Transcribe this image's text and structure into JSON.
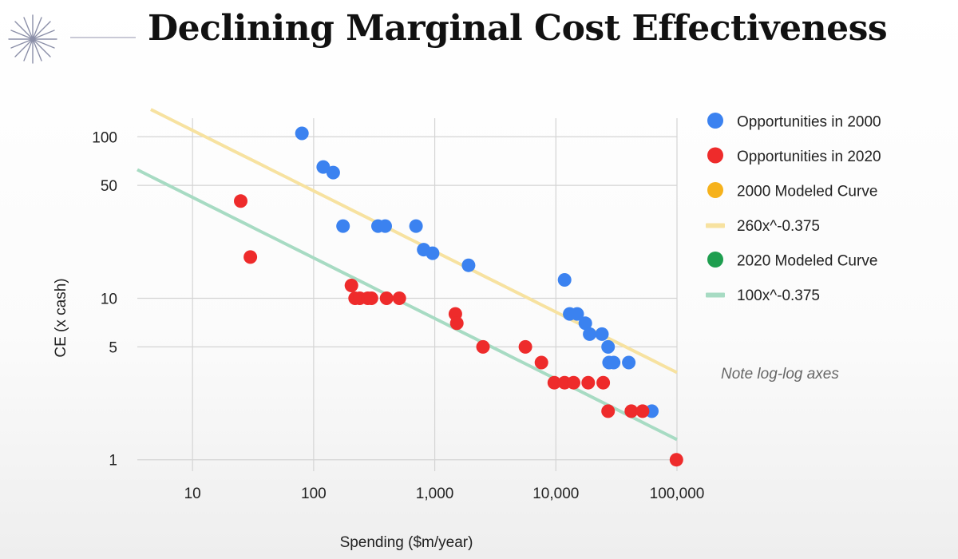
{
  "title": "Declining Marginal Cost Effectiveness",
  "note": "Note log-log axes",
  "colors": {
    "blue": "#3b82f0",
    "red": "#ee2b2b",
    "orange": "#f6b21c",
    "green": "#1e9e4f",
    "yellow_line": "#f7e2a0",
    "green_line": "#a7dbc3",
    "grid": "#d4d4d4"
  },
  "chart_data": {
    "type": "scatter",
    "title": "Declining Marginal Cost Effectiveness",
    "xlabel": "Spending ($m/year)",
    "ylabel": "CE (x cash)",
    "xscale": "log",
    "yscale": "log",
    "xlim": [
      3.5,
      100000
    ],
    "ylim": [
      0.85,
      160
    ],
    "xticks": [
      {
        "value": 10,
        "label": "10"
      },
      {
        "value": 100,
        "label": "100"
      },
      {
        "value": 1000,
        "label": "1,000"
      },
      {
        "value": 10000,
        "label": "10,000"
      },
      {
        "value": 100000,
        "label": "100,000"
      }
    ],
    "yticks": [
      {
        "value": 1,
        "label": "1"
      },
      {
        "value": 5,
        "label": "5"
      },
      {
        "value": 10,
        "label": "10"
      },
      {
        "value": 50,
        "label": "50"
      },
      {
        "value": 100,
        "label": "100"
      }
    ],
    "grid": true,
    "legend_position": "right",
    "legend": [
      {
        "label": "Opportunities in 2000",
        "kind": "dot",
        "color": "blue"
      },
      {
        "label": "Opportunities in 2020",
        "kind": "dot",
        "color": "red"
      },
      {
        "label": "2000 Modeled Curve",
        "kind": "dot",
        "color": "orange"
      },
      {
        "label": "260x^-0.375",
        "kind": "line",
        "color": "yellow_line"
      },
      {
        "label": "2020 Modeled Curve",
        "kind": "dot",
        "color": "green"
      },
      {
        "label": "100x^-0.375",
        "kind": "line",
        "color": "green_line"
      }
    ],
    "series": [
      {
        "name": "Opportunities in 2000",
        "color": "blue",
        "points": [
          [
            80,
            105
          ],
          [
            120,
            65
          ],
          [
            145,
            60
          ],
          [
            175,
            28
          ],
          [
            340,
            28
          ],
          [
            390,
            28
          ],
          [
            700,
            28
          ],
          [
            810,
            20
          ],
          [
            960,
            19
          ],
          [
            1900,
            16
          ],
          [
            11800,
            13
          ],
          [
            13000,
            8
          ],
          [
            15000,
            8
          ],
          [
            17500,
            7
          ],
          [
            19000,
            6
          ],
          [
            24000,
            6
          ],
          [
            27000,
            5
          ],
          [
            27500,
            4
          ],
          [
            30000,
            4
          ],
          [
            40000,
            4
          ],
          [
            62000,
            2
          ]
        ]
      },
      {
        "name": "Opportunities in 2020",
        "color": "red",
        "points": [
          [
            25,
            40
          ],
          [
            30,
            18
          ],
          [
            205,
            12
          ],
          [
            220,
            10
          ],
          [
            240,
            10
          ],
          [
            280,
            10
          ],
          [
            300,
            10
          ],
          [
            400,
            10
          ],
          [
            510,
            10
          ],
          [
            1480,
            8
          ],
          [
            1520,
            7
          ],
          [
            2500,
            5
          ],
          [
            5600,
            5
          ],
          [
            7600,
            4
          ],
          [
            9700,
            3
          ],
          [
            11800,
            3
          ],
          [
            14000,
            3
          ],
          [
            18500,
            3
          ],
          [
            24600,
            3
          ],
          [
            27000,
            2
          ],
          [
            42000,
            2
          ],
          [
            52000,
            2
          ],
          [
            99000,
            1
          ]
        ]
      }
    ],
    "curves": [
      {
        "name": "260x^-0.375",
        "color": "yellow_line",
        "coefficient": 260,
        "exponent": -0.375
      },
      {
        "name": "100x^-0.375",
        "color": "green_line",
        "coefficient": 100,
        "exponent": -0.375
      }
    ]
  }
}
